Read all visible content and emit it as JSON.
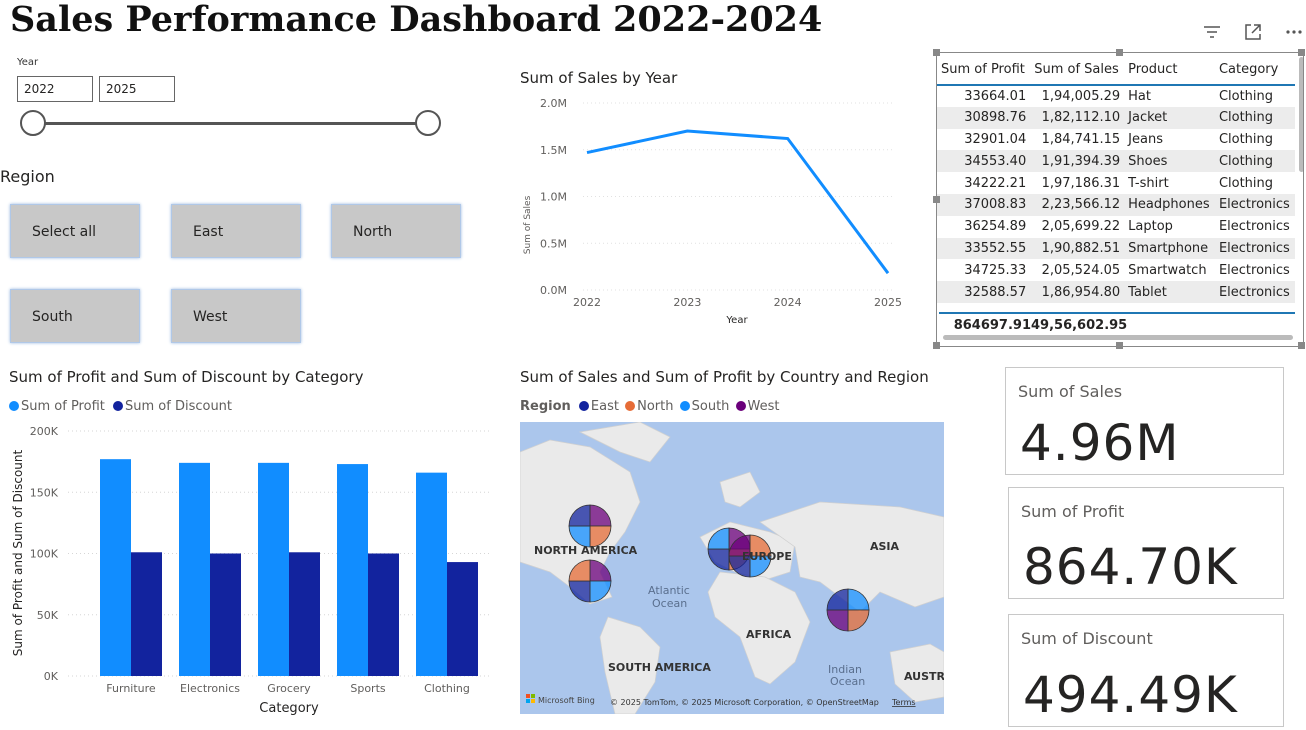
{
  "title": "Sales Performance Dashboard 2022-2024",
  "toolbar": {
    "icons": [
      "filter-icon",
      "focus-mode-icon",
      "more-options-icon"
    ]
  },
  "year_slicer": {
    "label": "Year",
    "start": "2022",
    "end": "2025"
  },
  "region_slicer": {
    "title": "Region",
    "buttons": [
      "Select all",
      "East",
      "North",
      "South",
      "West"
    ]
  },
  "line_chart": {
    "title": "Sum of Sales by Year",
    "xlabel": "Year",
    "ylabel": "Sum of Sales",
    "yticks": [
      "0.0M",
      "0.5M",
      "1.0M",
      "1.5M",
      "2.0M"
    ]
  },
  "table": {
    "headers": [
      "Sum of Profit",
      "Sum of Sales",
      "Product",
      "Category"
    ],
    "rows": [
      [
        "33664.01",
        "1,94,005.29",
        "Hat",
        "Clothing"
      ],
      [
        "30898.76",
        "1,82,112.10",
        "Jacket",
        "Clothing"
      ],
      [
        "32901.04",
        "1,84,741.15",
        "Jeans",
        "Clothing"
      ],
      [
        "34553.40",
        "1,91,394.39",
        "Shoes",
        "Clothing"
      ],
      [
        "34222.21",
        "1,97,186.31",
        "T-shirt",
        "Clothing"
      ],
      [
        "37008.83",
        "2,23,566.12",
        "Headphones",
        "Electronics"
      ],
      [
        "36254.89",
        "2,05,699.22",
        "Laptop",
        "Electronics"
      ],
      [
        "33552.55",
        "1,90,882.51",
        "Smartphone",
        "Electronics"
      ],
      [
        "34725.33",
        "2,05,524.05",
        "Smartwatch",
        "Electronics"
      ],
      [
        "32588.57",
        "1,86,954.80",
        "Tablet",
        "Electronics"
      ]
    ],
    "total": [
      "864697.91",
      "49,56,602.95",
      "",
      ""
    ]
  },
  "bar_chart": {
    "title": "Sum of Profit and Sum of Discount by Category",
    "xlabel": "Category",
    "ylabel": "Sum of Profit and Sum of Discount",
    "yticks": [
      "0K",
      "50K",
      "100K",
      "150K",
      "200K"
    ]
  },
  "map": {
    "title": "Sum of Sales and Sum of Profit by Country and Region",
    "legend_title": "Region",
    "legend": [
      {
        "name": "East",
        "color": "#12239e"
      },
      {
        "name": "North",
        "color": "#e66c37"
      },
      {
        "name": "South",
        "color": "#118dff"
      },
      {
        "name": "West",
        "color": "#6b007b"
      }
    ],
    "continents": [
      "NORTH AMERICA",
      "EUROPE",
      "ASIA",
      "AFRICA",
      "SOUTH AMERICA",
      "AUSTRA"
    ],
    "oceans": [
      "Atlantic",
      "Ocean",
      "Indian",
      "Ocean"
    ],
    "attribution": "© 2025 TomTom, © 2025 Microsoft Corporation, © OpenStreetMap",
    "terms": "Terms",
    "brand": "Microsoft Bing"
  },
  "cards": [
    {
      "label": "Sum of Sales",
      "value": "4.96M"
    },
    {
      "label": "Sum of Profit",
      "value": "864.70K"
    },
    {
      "label": "Sum of Discount",
      "value": "494.49K"
    }
  ],
  "chart_data": [
    {
      "type": "line",
      "title": "Sum of Sales by Year",
      "xlabel": "Year",
      "ylabel": "Sum of Sales",
      "x": [
        "2022",
        "2023",
        "2024",
        "2025"
      ],
      "series": [
        {
          "values": [
            1470000,
            1700000,
            1620000,
            180000
          ],
          "color": "#118dff"
        }
      ],
      "ylim": [
        0,
        2000000
      ],
      "grid": true
    },
    {
      "type": "bar",
      "title": "Sum of Profit and Sum of Discount by Category",
      "xlabel": "Category",
      "ylabel": "Sum of Profit and Sum of Discount",
      "categories": [
        "Furniture",
        "Electronics",
        "Grocery",
        "Sports",
        "Clothing"
      ],
      "series": [
        {
          "name": "Sum of Profit",
          "values": [
            177000,
            174000,
            174000,
            173000,
            166000
          ],
          "color": "#118dff"
        },
        {
          "name": "Sum of Discount",
          "values": [
            101000,
            100000,
            101000,
            100000,
            93000
          ],
          "color": "#12239e"
        }
      ],
      "ylim": [
        0,
        200000
      ],
      "legend": "top-left",
      "grid": true
    }
  ]
}
